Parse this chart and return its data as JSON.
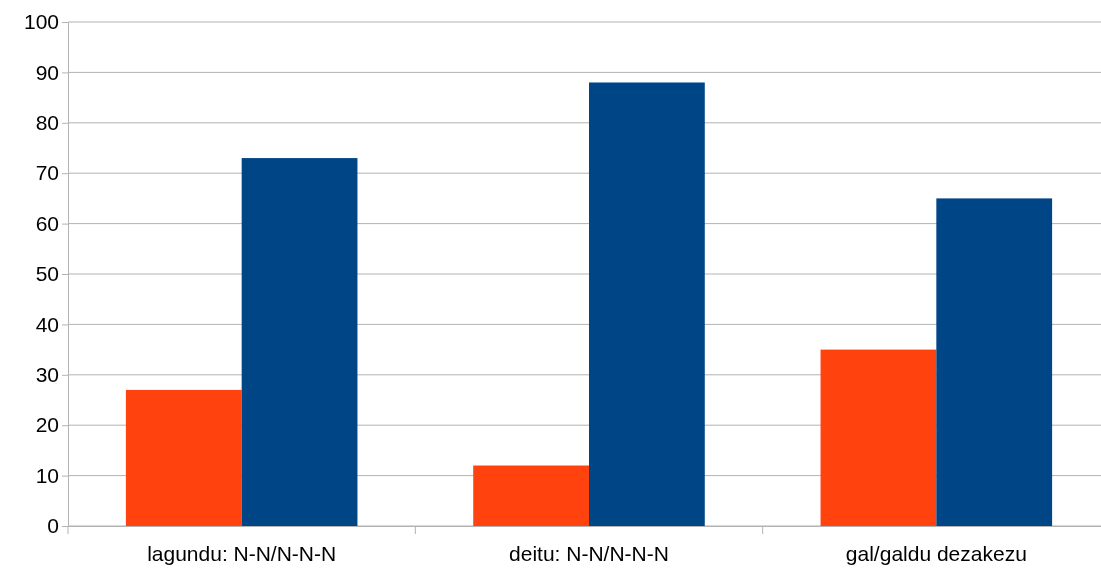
{
  "chart_data": {
    "type": "bar",
    "categories": [
      "lagundu: N-N/N-N-N",
      "deitu: N-N/N-N-N",
      "gal/galdu dezakezu"
    ],
    "series": [
      {
        "color": "#ff420e",
        "values": [
          27,
          12,
          35
        ]
      },
      {
        "color": "#004586",
        "values": [
          73,
          88,
          65
        ]
      }
    ],
    "ylim": [
      0,
      100
    ],
    "yticks": [
      0,
      10,
      20,
      30,
      40,
      50,
      60,
      70,
      80,
      90,
      100
    ],
    "grid": "y"
  }
}
